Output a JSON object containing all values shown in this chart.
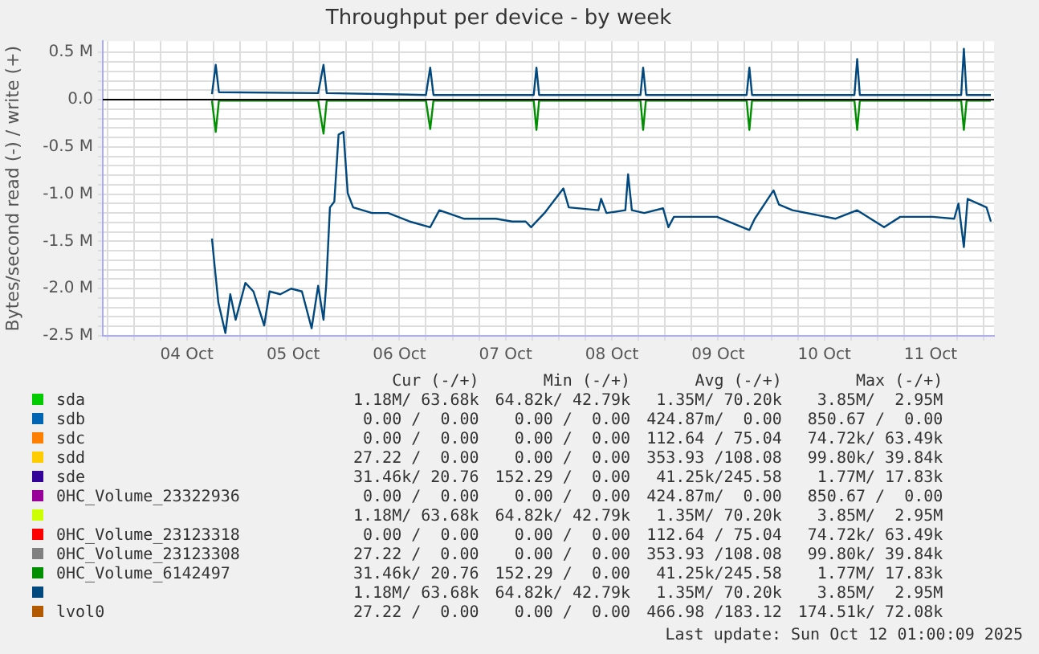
{
  "chart_data": {
    "type": "line",
    "title": "Throughput per device - by week",
    "ylabel": "Bytes/second read (-) / write (+)",
    "xlim": [
      "2025-10-03T17:00",
      "2025-10-12T02:20"
    ],
    "xticks": [
      {
        "value": "2025-10-03T18:00",
        "label": null
      },
      {
        "value": "2025-10-04T00:00",
        "label": null
      },
      {
        "value": "2025-10-04T06:00",
        "label": null
      },
      {
        "value": "2025-10-04T12:00",
        "label": "04 Oct"
      },
      {
        "value": "2025-10-04T18:00",
        "label": null
      },
      {
        "value": "2025-10-05T00:00",
        "label": null
      },
      {
        "value": "2025-10-05T06:00",
        "label": null
      },
      {
        "value": "2025-10-05T12:00",
        "label": "05 Oct"
      },
      {
        "value": "2025-10-05T18:00",
        "label": null
      },
      {
        "value": "2025-10-06T00:00",
        "label": null
      },
      {
        "value": "2025-10-06T06:00",
        "label": null
      },
      {
        "value": "2025-10-06T12:00",
        "label": "06 Oct"
      },
      {
        "value": "2025-10-06T18:00",
        "label": null
      },
      {
        "value": "2025-10-07T00:00",
        "label": null
      },
      {
        "value": "2025-10-07T06:00",
        "label": null
      },
      {
        "value": "2025-10-07T12:00",
        "label": "07 Oct"
      },
      {
        "value": "2025-10-07T18:00",
        "label": null
      },
      {
        "value": "2025-10-08T00:00",
        "label": null
      },
      {
        "value": "2025-10-08T06:00",
        "label": null
      },
      {
        "value": "2025-10-08T12:00",
        "label": "08 Oct"
      },
      {
        "value": "2025-10-08T18:00",
        "label": null
      },
      {
        "value": "2025-10-09T00:00",
        "label": null
      },
      {
        "value": "2025-10-09T06:00",
        "label": null
      },
      {
        "value": "2025-10-09T12:00",
        "label": "09 Oct"
      },
      {
        "value": "2025-10-09T18:00",
        "label": null
      },
      {
        "value": "2025-10-10T00:00",
        "label": null
      },
      {
        "value": "2025-10-10T06:00",
        "label": null
      },
      {
        "value": "2025-10-10T12:00",
        "label": "10 Oct"
      },
      {
        "value": "2025-10-10T18:00",
        "label": null
      },
      {
        "value": "2025-10-11T00:00",
        "label": null
      },
      {
        "value": "2025-10-11T06:00",
        "label": null
      },
      {
        "value": "2025-10-11T12:00",
        "label": "11 Oct"
      },
      {
        "value": "2025-10-11T18:00",
        "label": null
      },
      {
        "value": "2025-10-12T00:00",
        "label": null
      }
    ],
    "ylim": [
      -2.5,
      0.62
    ],
    "yticks": [
      {
        "value": -2.5,
        "label": "-2.5 M"
      },
      {
        "value": -2.4,
        "label": null
      },
      {
        "value": -2.3,
        "label": null
      },
      {
        "value": -2.2,
        "label": null
      },
      {
        "value": -2.1,
        "label": null
      },
      {
        "value": -2.0,
        "label": "-2.0 M"
      },
      {
        "value": -1.9,
        "label": null
      },
      {
        "value": -1.8,
        "label": null
      },
      {
        "value": -1.7,
        "label": null
      },
      {
        "value": -1.6,
        "label": null
      },
      {
        "value": -1.5,
        "label": "-1.5 M"
      },
      {
        "value": -1.4,
        "label": null
      },
      {
        "value": -1.3,
        "label": null
      },
      {
        "value": -1.2,
        "label": null
      },
      {
        "value": -1.1,
        "label": null
      },
      {
        "value": -1.0,
        "label": "-1.0 M"
      },
      {
        "value": -0.9,
        "label": null
      },
      {
        "value": -0.8,
        "label": null
      },
      {
        "value": -0.7,
        "label": null
      },
      {
        "value": -0.6,
        "label": null
      },
      {
        "value": -0.5,
        "label": "-0.5 M"
      },
      {
        "value": -0.4,
        "label": null
      },
      {
        "value": -0.3,
        "label": null
      },
      {
        "value": -0.2,
        "label": null
      },
      {
        "value": -0.1,
        "label": null
      },
      {
        "value": 0,
        "label": "0.0"
      },
      {
        "value": 0.1,
        "label": null
      },
      {
        "value": 0.2,
        "label": null
      },
      {
        "value": 0.3,
        "label": null
      },
      {
        "value": 0.4,
        "label": null
      },
      {
        "value": 0.5,
        "label": "0.5 M"
      }
    ],
    "grid": true,
    "legend": "bottom",
    "marker": "none",
    "line_style": "solid",
    "ref_lines": [
      {
        "axis": "y",
        "value": 0,
        "color": "#000000"
      }
    ],
    "series": [
      {
        "name": "sda",
        "color": "#00cc00",
        "values": [
          null
        ]
      },
      {
        "name": "sdb",
        "color": "#0066b3",
        "values": [
          null
        ]
      },
      {
        "name": "sdc",
        "color": "#ff8000",
        "values": [
          null
        ]
      },
      {
        "name": "sdd",
        "color": "#ffcc00",
        "values": [
          null
        ]
      },
      {
        "name": "sde",
        "color": "#330099",
        "values": [
          null
        ]
      },
      {
        "name": "0HC_Volume_23322936",
        "color": "#990099",
        "values": [
          null
        ]
      },
      {
        "color": "#ccff00",
        "values": [
          null
        ]
      },
      {
        "name": "0HC_Volume_23123318",
        "color": "#ff0000",
        "values": [
          null
        ]
      },
      {
        "name": "0HC_Volume_23123308",
        "color": "#808080",
        "values": [
          null
        ]
      },
      {
        "name": "0HC_Volume_6142497",
        "color": "#008f00",
        "x": [
          "2025-10-04T17:40",
          "2025-10-04T18:31",
          "2025-10-04T19:14",
          "2025-10-05T17:39",
          "2025-10-05T18:52",
          "2025-10-05T19:35",
          "2025-10-06T18:00",
          "2025-10-06T18:58",
          "2025-10-06T19:42",
          "2025-10-07T18:21",
          "2025-10-07T18:58",
          "2025-10-07T19:34",
          "2025-10-08T18:28",
          "2025-10-08T19:04",
          "2025-10-08T19:41",
          "2025-10-09T18:27",
          "2025-10-09T19:04",
          "2025-10-09T19:40",
          "2025-10-10T18:48",
          "2025-10-10T19:25",
          "2025-10-10T20:01",
          "2025-10-11T18:55",
          "2025-10-11T19:31",
          "2025-10-11T20:08",
          "2025-10-12T01:37"
        ],
        "values": [
          -0.01,
          -0.34,
          -0.01,
          -0.01,
          -0.36,
          -0.01,
          -0.01,
          -0.31,
          -0.01,
          -0.01,
          -0.32,
          -0.01,
          -0.01,
          -0.32,
          -0.01,
          -0.01,
          -0.32,
          -0.01,
          -0.01,
          -0.32,
          -0.01,
          -0.01,
          -0.32,
          -0.01,
          -0.01
        ]
      },
      {
        "color": "#00487d",
        "x": [
          "2025-10-04T17:40",
          "2025-10-04T18:16",
          "2025-10-04T19:07",
          "2025-10-04T20:42",
          "2025-10-04T21:48",
          "2025-10-04T23:01",
          "2025-10-05T01:13",
          "2025-10-05T03:02",
          "2025-10-05T05:28",
          "2025-10-05T06:41",
          "2025-10-05T09:07",
          "2025-10-05T11:33",
          "2025-10-05T13:59",
          "2025-10-05T16:11",
          "2025-10-05T17:39",
          "2025-10-05T18:52",
          "2025-10-05T19:28",
          "2025-10-05T20:19",
          "2025-10-05T21:18",
          "2025-10-05T22:16",
          "2025-10-05T23:22",
          "2025-10-06T00:20",
          "2025-10-06T01:34",
          "2025-10-06T05:49",
          "2025-10-06T09:28",
          "2025-10-06T14:21",
          "2025-10-06T18:58",
          "2025-10-06T21:02",
          "2025-10-07T02:31",
          "2025-10-07T09:50",
          "2025-10-07T13:29",
          "2025-10-07T16:32",
          "2025-10-07T17:44",
          "2025-10-07T20:47",
          "2025-10-08T01:03",
          "2025-10-08T02:16",
          "2025-10-08T08:58",
          "2025-10-08T09:34",
          "2025-10-08T10:47",
          "2025-10-08T15:03",
          "2025-10-08T15:40",
          "2025-10-08T16:31",
          "2025-10-08T19:19",
          "2025-10-08T23:34",
          "2025-10-09T00:47",
          "2025-10-09T02:01",
          "2025-10-09T11:45",
          "2025-10-09T19:04",
          "2025-10-09T20:17",
          "2025-10-10T00:32",
          "2025-10-10T01:45",
          "2025-10-10T04:48",
          "2025-10-10T14:32",
          "2025-10-10T19:25",
          "2025-10-11T01:30",
          "2025-10-11T05:09",
          "2025-10-11T12:28",
          "2025-10-11T17:20",
          "2025-10-11T18:18",
          "2025-10-11T19:31",
          "2025-10-11T20:22",
          "2025-10-12T00:38",
          "2025-10-12T01:37"
        ],
        "values": [
          -1.47,
          -1.76,
          -2.15,
          -2.47,
          -2.06,
          -2.33,
          -1.94,
          -2.03,
          -2.39,
          -2.03,
          -2.06,
          -2.0,
          -2.03,
          -2.42,
          -1.97,
          -2.33,
          -1.97,
          -1.14,
          -1.08,
          -0.37,
          -0.34,
          -0.99,
          -1.14,
          -1.2,
          -1.2,
          -1.29,
          -1.35,
          -1.17,
          -1.26,
          -1.26,
          -1.29,
          -1.29,
          -1.35,
          -1.2,
          -0.94,
          -1.14,
          -1.17,
          -1.05,
          -1.2,
          -1.17,
          -0.79,
          -1.17,
          -1.2,
          -1.15,
          -1.35,
          -1.24,
          -1.24,
          -1.38,
          -1.26,
          -0.96,
          -1.11,
          -1.17,
          -1.26,
          -1.17,
          -1.35,
          -1.24,
          -1.24,
          -1.26,
          -1.1,
          -1.56,
          -1.05,
          -1.14,
          -1.29
        ]
      },
      {
        "name": "lvol0",
        "color": "#b35a00",
        "values": [
          null
        ]
      },
      {
        "color": "#00487d",
        "x": [
          "2025-10-04T17:40",
          "2025-10-04T18:31",
          "2025-10-04T19:14",
          "2025-10-05T17:39",
          "2025-10-05T18:52",
          "2025-10-05T19:35",
          "2025-10-06T18:00",
          "2025-10-06T18:58",
          "2025-10-06T19:42",
          "2025-10-07T18:21",
          "2025-10-07T18:58",
          "2025-10-07T19:34",
          "2025-10-08T18:28",
          "2025-10-08T19:04",
          "2025-10-08T19:41",
          "2025-10-09T18:27",
          "2025-10-09T19:04",
          "2025-10-09T19:40",
          "2025-10-10T18:48",
          "2025-10-10T19:25",
          "2025-10-10T20:01",
          "2025-10-11T18:55",
          "2025-10-11T19:31",
          "2025-10-11T20:08",
          "2025-10-12T01:37"
        ],
        "values": [
          0.06,
          0.37,
          0.08,
          0.07,
          0.37,
          0.07,
          0.05,
          0.34,
          0.05,
          0.05,
          0.34,
          0.05,
          0.05,
          0.34,
          0.05,
          0.05,
          0.34,
          0.05,
          0.05,
          0.43,
          0.05,
          0.05,
          0.54,
          0.05,
          0.05
        ]
      }
    ],
    "annotations": [
      "Cur (-/+)",
      "Min (-/+)",
      "Avg (-/+)",
      "Max (-/+)",
      "1.18M/ 63.68k",
      "64.82k/ 42.79k",
      "1.35M/ 70.20k",
      "3.85M/  2.95M",
      "0.00 /  0.00",
      "0.00 /  0.00",
      "424.87m/  0.00",
      "850.67 /  0.00",
      "0.00 /  0.00",
      "0.00 /  0.00",
      "112.64 / 75.04",
      "74.72k/ 63.49k",
      "27.22 /  0.00",
      "0.00 /  0.00",
      "353.93 /108.08",
      "99.80k/ 39.84k",
      "31.46k/ 20.76",
      "152.29 /  0.00",
      "41.25k/245.58",
      "1.77M/ 17.83k",
      "0.00 /  0.00",
      "0.00 /  0.00",
      "424.87m/  0.00",
      "850.67 /  0.00",
      "1.18M/ 63.68k",
      "64.82k/ 42.79k",
      "1.35M/ 70.20k",
      "3.85M/  2.95M",
      "0.00 /  0.00",
      "0.00 /  0.00",
      "112.64 / 75.04",
      "74.72k/ 63.49k",
      "27.22 /  0.00",
      "0.00 /  0.00",
      "353.93 /108.08",
      "99.80k/ 39.84k",
      "31.46k/ 20.76",
      "152.29 /  0.00",
      "41.25k/245.58",
      "1.77M/ 17.83k",
      "1.18M/ 63.68k",
      "64.82k/ 42.79k",
      "1.35M/ 70.20k",
      "3.85M/  2.95M",
      "27.22 /  0.00",
      "0.00 /  0.00",
      "466.98 /183.12",
      "174.51k/ 72.08k",
      "Last update: Sun Oct 12 01:00:09 2025"
    ]
  }
}
